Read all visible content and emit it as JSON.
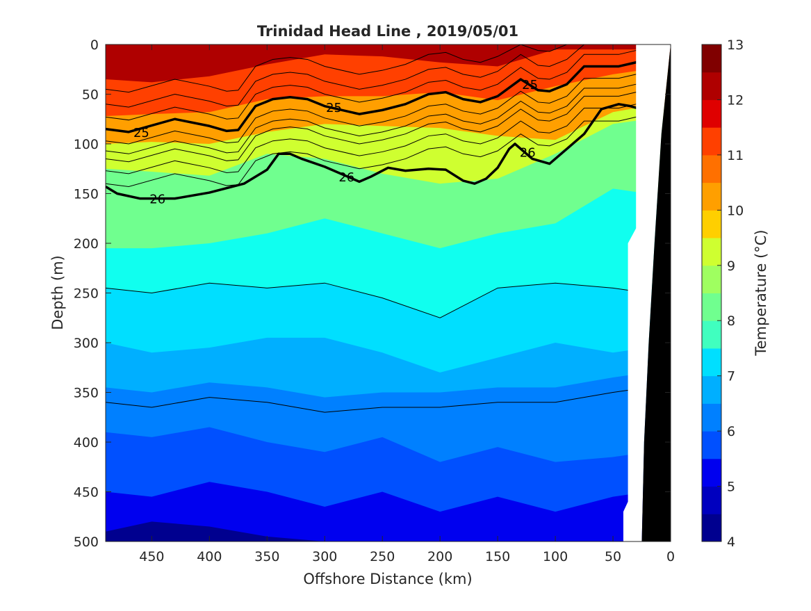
{
  "chart_data": {
    "type": "heatmap",
    "subtype": "filled-contour section",
    "title": "Trinidad Head Line , 2019/05/01",
    "xlabel": "Offshore Distance (km)",
    "ylabel": "Depth (m)",
    "xlim": [
      490,
      0
    ],
    "ylim": [
      500,
      0
    ],
    "x_reversed": true,
    "y_reversed": true,
    "x_ticks": [
      450,
      400,
      350,
      300,
      250,
      200,
      150,
      100,
      50,
      0
    ],
    "y_ticks": [
      0,
      50,
      100,
      150,
      200,
      250,
      300,
      350,
      400,
      450,
      500
    ],
    "colorbar": {
      "label": "Temperature (°C)",
      "range": [
        4,
        13
      ],
      "ticks": [
        4,
        5,
        6,
        7,
        8,
        9,
        10,
        11,
        12,
        13
      ],
      "levels": [
        4,
        4.5,
        5,
        5.5,
        6,
        6.5,
        7,
        7.5,
        8,
        8.5,
        9,
        9.5,
        10,
        10.5,
        11,
        11.5,
        12,
        12.5,
        13
      ],
      "colors": [
        "#00008f",
        "#0000bf",
        "#0000ef",
        "#0020ff",
        "#0050ff",
        "#0080ff",
        "#00afff",
        "#00dfff",
        "#10ffef",
        "#40ffbf",
        "#70ff8f",
        "#9fff60",
        "#cfff30",
        "#ffff00",
        "#ffcf00",
        "#ff9f00",
        "#ff7000",
        "#ff4000",
        "#ff1000",
        "#df0000",
        "#af0000",
        "#800000"
      ]
    },
    "isotherm_depths": {
      "x_km": [
        490,
        450,
        400,
        350,
        300,
        250,
        200,
        150,
        100,
        50,
        20
      ],
      "t_11.5": [
        35,
        38,
        32,
        20,
        10,
        12,
        18,
        22,
        5,
        5,
        5
      ],
      "t_10.5": [
        72,
        70,
        68,
        55,
        52,
        52,
        48,
        56,
        42,
        30,
        25
      ],
      "t_9.5": [
        100,
        98,
        100,
        88,
        80,
        82,
        84,
        92,
        96,
        68,
        62
      ],
      "t_8.5": [
        125,
        128,
        132,
        110,
        115,
        130,
        140,
        135,
        110,
        80,
        75
      ],
      "t_7.5": [
        205,
        205,
        200,
        190,
        175,
        190,
        205,
        190,
        180,
        145,
        150
      ],
      "t_7": [
        245,
        250,
        240,
        245,
        240,
        255,
        275,
        245,
        240,
        245,
        250
      ],
      "t_6.5": [
        300,
        310,
        305,
        295,
        295,
        310,
        330,
        315,
        300,
        310,
        305
      ],
      "t_6": [
        345,
        350,
        340,
        345,
        355,
        350,
        350,
        345,
        345,
        335,
        330
      ],
      "t_5.5": [
        390,
        395,
        385,
        400,
        410,
        395,
        420,
        405,
        420,
        415,
        410
      ],
      "t_5": [
        450,
        455,
        440,
        450,
        465,
        450,
        470,
        455,
        470,
        455,
        450
      ],
      "t_4.5": [
        490,
        480,
        485,
        495,
        500,
        500,
        500,
        500,
        500,
        500,
        500
      ]
    },
    "density_contours": [
      {
        "label": "25",
        "x_km": [
          490,
          470,
          430,
          400,
          385,
          375,
          360,
          345,
          330,
          315,
          300,
          270,
          250,
          230,
          210,
          195,
          180,
          165,
          150,
          130,
          115,
          105,
          90,
          75,
          60,
          45,
          30,
          20
        ],
        "depth_m": [
          85,
          88,
          75,
          82,
          87,
          86,
          62,
          55,
          53,
          55,
          62,
          70,
          66,
          60,
          50,
          48,
          55,
          58,
          52,
          35,
          46,
          47,
          40,
          22,
          22,
          22,
          18,
          12
        ]
      },
      {
        "label": "26",
        "x_km": [
          490,
          480,
          460,
          430,
          400,
          370,
          350,
          340,
          330,
          320,
          300,
          280,
          270,
          260,
          245,
          230,
          210,
          195,
          180,
          170,
          160,
          150,
          140,
          135,
          120,
          105,
          90,
          75,
          60,
          45,
          35,
          20
        ],
        "depth_m": [
          143,
          150,
          155,
          155,
          149,
          140,
          126,
          110,
          110,
          115,
          123,
          133,
          138,
          133,
          124,
          127,
          125,
          126,
          137,
          140,
          135,
          124,
          105,
          100,
          115,
          120,
          105,
          90,
          65,
          60,
          62,
          67
        ]
      }
    ],
    "contour_labels": [
      {
        "text": "25",
        "x_km": 459,
        "depth_m": 88
      },
      {
        "text": "25",
        "x_km": 292,
        "depth_m": 63
      },
      {
        "text": "25",
        "x_km": 122,
        "depth_m": 40
      },
      {
        "text": "26",
        "x_km": 445,
        "depth_m": 155
      },
      {
        "text": "26",
        "x_km": 281,
        "depth_m": 133
      },
      {
        "text": "26",
        "x_km": 124,
        "depth_m": 108
      }
    ],
    "seafloor_km": [
      {
        "depth_m": 0,
        "x_km": 0
      },
      {
        "depth_m": 90,
        "x_km": 8
      },
      {
        "depth_m": 200,
        "x_km": 14
      },
      {
        "depth_m": 300,
        "x_km": 19
      },
      {
        "depth_m": 400,
        "x_km": 23
      },
      {
        "depth_m": 500,
        "x_km": 25
      }
    ],
    "no_data_zone": "white gap between last station and seafloor"
  }
}
